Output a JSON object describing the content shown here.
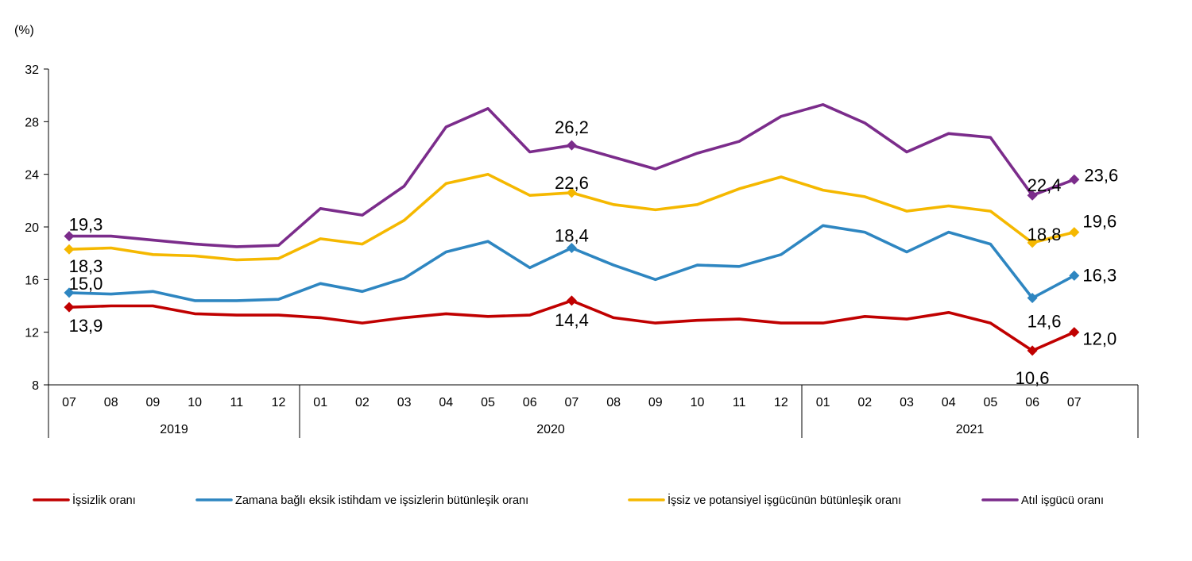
{
  "chart_data": {
    "type": "line",
    "unit_label": "(%)",
    "ylim": [
      8,
      32
    ],
    "yticks": [
      8,
      12,
      16,
      20,
      24,
      28,
      32
    ],
    "categories": [
      "07",
      "08",
      "09",
      "10",
      "11",
      "12",
      "01",
      "02",
      "03",
      "04",
      "05",
      "06",
      "07",
      "08",
      "09",
      "10",
      "11",
      "12",
      "01",
      "02",
      "03",
      "04",
      "05",
      "06",
      "07"
    ],
    "year_groups": [
      {
        "label": "2019",
        "start": 0,
        "end": 5
      },
      {
        "label": "2020",
        "start": 6,
        "end": 17
      },
      {
        "label": "2021",
        "start": 18,
        "end": 24
      }
    ],
    "series": [
      {
        "name": "İşsizlik oranı",
        "color": "#C00000",
        "values": [
          13.9,
          14.0,
          14.0,
          13.4,
          13.3,
          13.3,
          13.1,
          12.7,
          13.1,
          13.4,
          13.2,
          13.3,
          14.4,
          13.1,
          12.7,
          12.9,
          13.0,
          12.7,
          12.7,
          13.2,
          13.0,
          13.5,
          12.7,
          10.6,
          12.0
        ]
      },
      {
        "name": "Zamana bağlı eksik istihdam ve işsizlerin bütünleşik oranı",
        "color": "#2E86C1",
        "values": [
          15.0,
          14.9,
          15.1,
          14.4,
          14.4,
          14.5,
          15.7,
          15.1,
          16.1,
          18.1,
          18.9,
          16.9,
          18.4,
          17.1,
          16.0,
          17.1,
          17.0,
          17.9,
          20.1,
          19.6,
          18.1,
          19.6,
          18.7,
          14.6,
          16.3
        ]
      },
      {
        "name": "İşsiz ve potansiyel işgücünün bütünleşik oranı",
        "color": "#F5B800",
        "values": [
          18.3,
          18.4,
          17.9,
          17.8,
          17.5,
          17.6,
          19.1,
          18.7,
          20.5,
          23.3,
          24.0,
          22.4,
          22.6,
          21.7,
          21.3,
          21.7,
          22.9,
          23.8,
          22.8,
          22.3,
          21.2,
          21.6,
          21.2,
          18.8,
          19.6
        ]
      },
      {
        "name": "Atıl işgücü oranı",
        "color": "#7B2C8B",
        "values": [
          19.3,
          19.3,
          19.0,
          18.7,
          18.5,
          18.6,
          21.4,
          20.9,
          23.1,
          27.6,
          29.0,
          25.7,
          26.2,
          25.3,
          24.4,
          25.6,
          26.5,
          28.4,
          29.3,
          27.9,
          25.7,
          27.1,
          26.8,
          22.4,
          23.6
        ]
      }
    ],
    "markers": [
      0,
      12,
      23,
      24
    ],
    "data_labels": [
      {
        "series": 0,
        "index": 0,
        "text": "13,9"
      },
      {
        "series": 0,
        "index": 12,
        "text": "14,4"
      },
      {
        "series": 0,
        "index": 23,
        "text": "10,6"
      },
      {
        "series": 0,
        "index": 24,
        "text": "12,0"
      },
      {
        "series": 1,
        "index": 0,
        "text": "15,0"
      },
      {
        "series": 1,
        "index": 12,
        "text": "18,4"
      },
      {
        "series": 1,
        "index": 23,
        "text": "14,6"
      },
      {
        "series": 1,
        "index": 24,
        "text": "16,3"
      },
      {
        "series": 2,
        "index": 0,
        "text": "18,3"
      },
      {
        "series": 2,
        "index": 12,
        "text": "22,6"
      },
      {
        "series": 2,
        "index": 23,
        "text": "18,8"
      },
      {
        "series": 2,
        "index": 24,
        "text": "19,6"
      },
      {
        "series": 3,
        "index": 0,
        "text": "19,3"
      },
      {
        "series": 3,
        "index": 12,
        "text": "26,2"
      },
      {
        "series": 3,
        "index": 23,
        "text": "22,4"
      },
      {
        "series": 3,
        "index": 24,
        "text": "23,6"
      }
    ],
    "legend_position": "bottom"
  }
}
